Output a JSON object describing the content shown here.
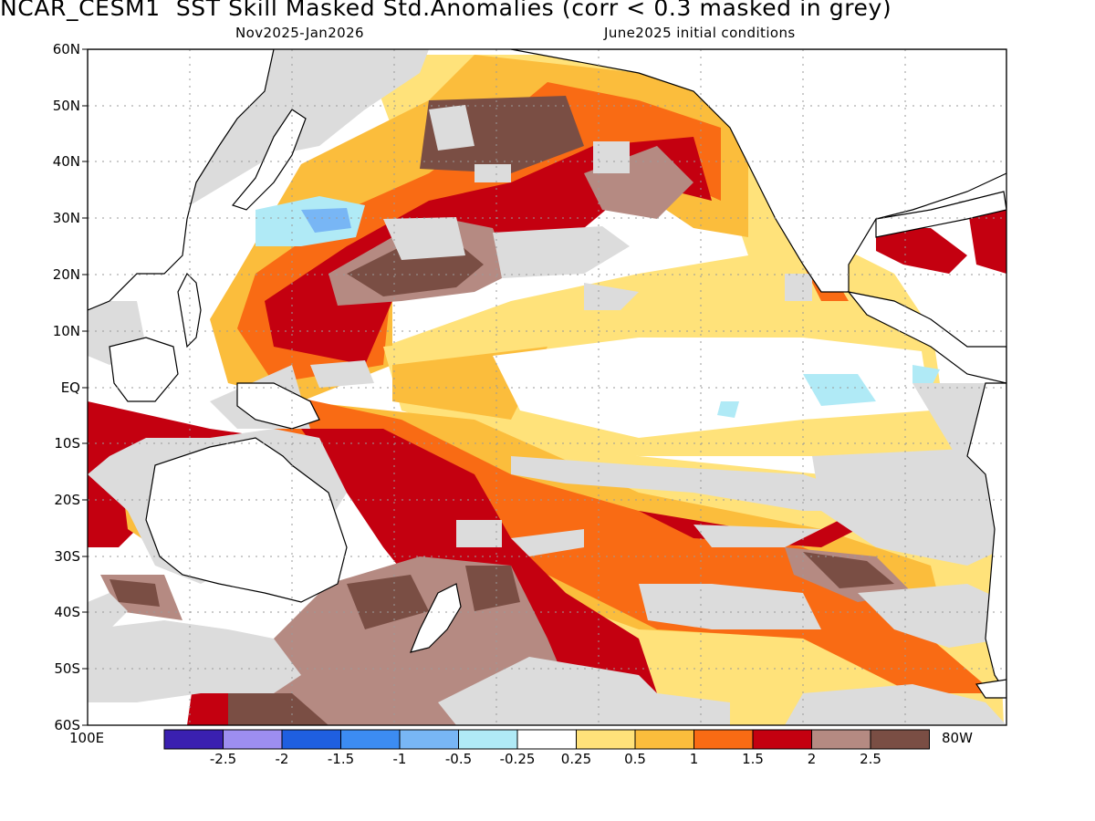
{
  "title": "NCAR_CESM1  SST Skill Masked Std.Anomalies (corr < 0.3 masked in grey)",
  "subtitle_left": "Nov2025-Jan2026",
  "subtitle_right": "June2025 initial conditions",
  "lat_labels": [
    "60N",
    "50N",
    "40N",
    "30N",
    "20N",
    "10N",
    "EQ",
    "10S",
    "20S",
    "30S",
    "40S",
    "50S",
    "60S"
  ],
  "lon_left": "100E",
  "lon_right": "80W",
  "colorbar": {
    "colors": [
      "#3a20b0",
      "#9d8ef0",
      "#1f5fe0",
      "#3c8cf2",
      "#78b6f5",
      "#b0eaf6",
      "#ffffff",
      "#ffe27a",
      "#fbbd3c",
      "#f96b14",
      "#c40010",
      "#b58a82",
      "#7a4e44"
    ],
    "labels": [
      "-2.5",
      "-2",
      "-1.5",
      "-1",
      "-0.5",
      "-0.25",
      "0.25",
      "0.5",
      "1",
      "1.5",
      "2",
      "2.5"
    ]
  },
  "colors": {
    "mask_grey": "#dcdcdc",
    "land": "#ffffff",
    "coast": "#000000",
    "grid": "#9a9a9a"
  }
}
